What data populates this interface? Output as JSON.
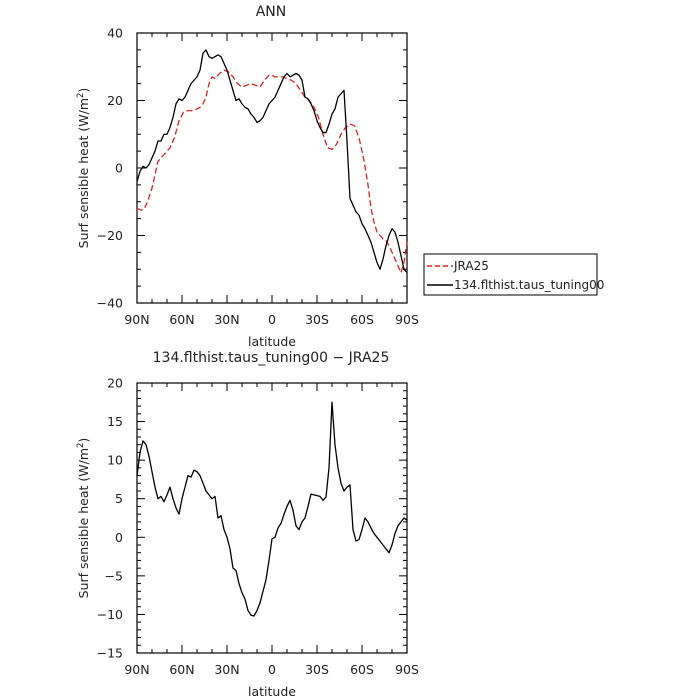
{
  "chart_data": [
    {
      "type": "line",
      "title": "ANN",
      "xlabel": "latitude",
      "ylabel": "Surf sensible heat (W/m²)",
      "ylabel_main": "Surf sensible heat (W/m",
      "ylabel_sup": "2",
      "ylabel_end": ")",
      "xlim": [
        90,
        -90
      ],
      "ylim": [
        -40,
        40
      ],
      "xticks": [
        90,
        60,
        30,
        0,
        -30,
        -60,
        -90
      ],
      "xtick_labels": [
        "90N",
        "60N",
        "30N",
        "0",
        "30S",
        "60S",
        "90S"
      ],
      "yticks": [
        -40,
        -20,
        0,
        20,
        40
      ],
      "ytick_labels": [
        "−40",
        "−20",
        "0",
        "20",
        "40"
      ],
      "legend": "right",
      "series": [
        {
          "name": "JRA25",
          "color": "#dd2222",
          "dash": "dashed",
          "x": [
            90,
            87,
            85,
            83,
            80,
            78,
            76,
            74,
            72,
            70,
            68,
            65,
            62,
            59,
            56,
            53,
            50,
            48,
            46,
            44,
            42,
            40,
            38,
            35,
            32,
            29,
            26,
            23,
            20,
            17,
            14,
            11,
            8,
            5,
            2,
            0,
            -2,
            -4,
            -7,
            -10,
            -13,
            -16,
            -19,
            -22,
            -25,
            -28,
            -31,
            -34,
            -37,
            -40,
            -43,
            -46,
            -49,
            -52,
            -55,
            -58,
            -61,
            -64,
            -66,
            -68,
            -70,
            -72,
            -74,
            -76,
            -78,
            -80,
            -82,
            -84,
            -86,
            -88,
            -90
          ],
          "y": [
            -12,
            -12.5,
            -12,
            -10,
            -6,
            -2,
            2,
            3,
            4,
            5,
            6,
            9,
            14,
            16.5,
            17,
            17,
            17.5,
            18,
            19,
            21,
            25,
            27,
            26.5,
            28,
            29,
            28.5,
            27,
            25,
            24,
            24.5,
            25,
            24.5,
            24,
            26,
            27.5,
            27.5,
            27,
            27,
            27,
            26.5,
            26,
            25,
            23,
            21,
            20,
            18,
            15,
            10,
            6,
            5.5,
            7,
            10,
            12,
            13,
            12.5,
            9,
            3,
            -5,
            -12,
            -16,
            -19,
            -20,
            -21,
            -21.5,
            -23,
            -25,
            -27,
            -29,
            -31,
            -28,
            -22
          ]
        },
        {
          "name": "134.flthist.taus_tuning00",
          "color": "#000000",
          "dash": "solid",
          "x": [
            90,
            88,
            86,
            84,
            82,
            80,
            78,
            76,
            74,
            72,
            70,
            68,
            66,
            64,
            62,
            60,
            58,
            56,
            54,
            52,
            50,
            48,
            46,
            44,
            42,
            40,
            38,
            36,
            34,
            32,
            30,
            28,
            26,
            24,
            22,
            20,
            18,
            16,
            14,
            12,
            10,
            8,
            6,
            4,
            2,
            0,
            -2,
            -4,
            -6,
            -8,
            -10,
            -12,
            -14,
            -16,
            -18,
            -20,
            -22,
            -24,
            -26,
            -28,
            -30,
            -32,
            -34,
            -36,
            -38,
            -40,
            -42,
            -44,
            -46,
            -48,
            -50,
            -52,
            -54,
            -56,
            -58,
            -60,
            -62,
            -64,
            -66,
            -68,
            -70,
            -72,
            -74,
            -76,
            -78,
            -80,
            -82,
            -84,
            -86,
            -88,
            -90
          ],
          "y": [
            -4,
            -1,
            0.5,
            0,
            1,
            3,
            5,
            8,
            8,
            10,
            10,
            12,
            15,
            19,
            20.5,
            20,
            21,
            23,
            25,
            26,
            27,
            29,
            34,
            35,
            33,
            32.5,
            33,
            33.5,
            33,
            31,
            29,
            26,
            23,
            20,
            20.5,
            19,
            18,
            17.5,
            16,
            15,
            13.5,
            14,
            15,
            17,
            19,
            20,
            21,
            23,
            25,
            27,
            28,
            27,
            27.5,
            28,
            27.5,
            26,
            21,
            20.5,
            19,
            17,
            14,
            12,
            10.5,
            10.5,
            13,
            16,
            17.5,
            21,
            22,
            23,
            8,
            -9,
            -11,
            -13,
            -14,
            -16.5,
            -18,
            -20,
            -22,
            -25,
            -28,
            -30,
            -27,
            -23,
            -20,
            -18,
            -19,
            -22,
            -26,
            -30,
            -31
          ]
        }
      ]
    },
    {
      "type": "line",
      "title": "134.flthist.taus_tuning00 − JRA25",
      "xlabel": "latitude",
      "ylabel": "Surf sensible heat (W/m²)",
      "ylabel_main": "Surf sensible heat (W/m",
      "ylabel_sup": "2",
      "ylabel_end": ")",
      "xlim": [
        90,
        -90
      ],
      "ylim": [
        -15,
        20
      ],
      "xticks": [
        90,
        60,
        30,
        0,
        -30,
        -60,
        -90
      ],
      "xtick_labels": [
        "90N",
        "60N",
        "30N",
        "0",
        "30S",
        "60S",
        "90S"
      ],
      "yticks": [
        -15,
        -10,
        -5,
        0,
        5,
        10,
        15,
        20
      ],
      "ytick_labels": [
        "−15",
        "−10",
        "−5",
        "0",
        "5",
        "10",
        "15",
        "20"
      ],
      "series": [
        {
          "color": "#000000",
          "dash": "solid",
          "x": [
            90,
            88,
            86,
            84,
            82,
            80,
            78,
            76,
            74,
            72,
            70,
            68,
            66,
            64,
            62,
            60,
            58,
            56,
            54,
            52,
            50,
            48,
            46,
            44,
            42,
            40,
            38,
            36,
            34,
            32,
            30,
            28,
            26,
            24,
            22,
            20,
            18,
            16,
            14,
            12,
            10,
            8,
            6,
            4,
            2,
            0,
            -2,
            -4,
            -6,
            -8,
            -10,
            -12,
            -14,
            -16,
            -18,
            -20,
            -22,
            -24,
            -26,
            -28,
            -30,
            -32,
            -34,
            -36,
            -38,
            -40,
            -42,
            -44,
            -46,
            -48,
            -50,
            -52,
            -54,
            -56,
            -58,
            -60,
            -62,
            -64,
            -66,
            -68,
            -70,
            -72,
            -74,
            -76,
            -78,
            -80,
            -82,
            -84,
            -86,
            -88,
            -90
          ],
          "y": [
            8,
            11,
            12.5,
            12,
            10.5,
            8.5,
            6.5,
            5,
            5.3,
            4.6,
            5.5,
            6.5,
            5,
            3.8,
            3,
            5,
            6.5,
            8,
            7.8,
            8.7,
            8.5,
            8,
            7,
            6,
            5.5,
            5,
            5.3,
            2.5,
            2.8,
            1,
            0,
            -1.5,
            -4,
            -4.3,
            -6,
            -7.2,
            -8,
            -9.5,
            -10.1,
            -10.2,
            -9.5,
            -8.5,
            -7,
            -5.5,
            -3,
            -0.2,
            0,
            1.2,
            1.8,
            3,
            4,
            4.8,
            3.5,
            1.5,
            1,
            2,
            2.5,
            4,
            5.6,
            5.5,
            5.4,
            5.3,
            4.8,
            5.2,
            9,
            17.5,
            12,
            9,
            7,
            6,
            6.5,
            6.8,
            1,
            -0.5,
            -0.3,
            1,
            2.5,
            2,
            1.2,
            0.5,
            0,
            -0.5,
            -1,
            -1.5,
            -2,
            -1,
            0.5,
            1.5,
            2,
            2.5,
            2.2
          ]
        }
      ]
    }
  ]
}
